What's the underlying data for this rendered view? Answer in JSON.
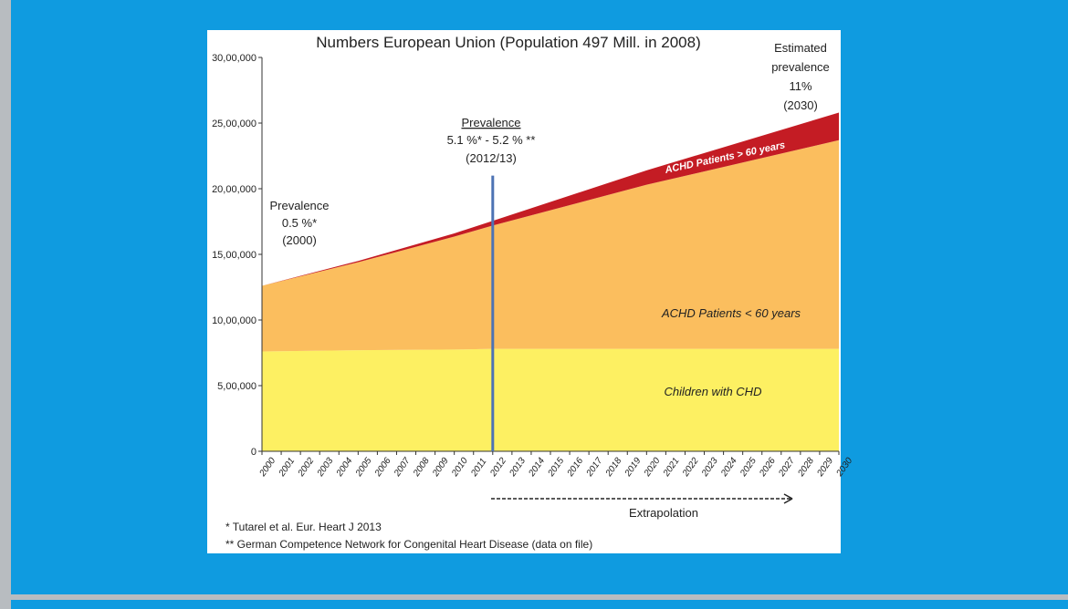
{
  "colors": {
    "background": "#0f9be0",
    "children": "#fdf062",
    "achd_under_60": "#fbbe5e",
    "achd_over_60": "#c41c24",
    "marker_line": "#4d73b4"
  },
  "chart_data": {
    "type": "area",
    "title": "Numbers European Union (Population  497 Mill. in 2008)",
    "xlabel": "",
    "ylabel": "",
    "ylim": [
      0,
      3000000
    ],
    "xlim": [
      2000,
      2030
    ],
    "y_ticks": [
      0,
      500000,
      1000000,
      1500000,
      2000000,
      2500000,
      3000000
    ],
    "y_tick_labels": [
      "0",
      "5,00,000",
      "10,00,000",
      "15,00,000",
      "20,00,000",
      "25,00,000",
      "30,00,000"
    ],
    "x_tick_labels": [
      "2000",
      "2001",
      "2002",
      "2003",
      "2004",
      "2005",
      "2006",
      "2007",
      "2008",
      "2009",
      "2010",
      "2011",
      "2012",
      "2013",
      "2014",
      "2015",
      "2016",
      "2017",
      "2018",
      "2019",
      "2020",
      "2021",
      "2022",
      "2023",
      "2024",
      "2025",
      "2026",
      "2027",
      "2028",
      "2029",
      "2030"
    ],
    "x": [
      2000,
      2005,
      2010,
      2012,
      2020,
      2030
    ],
    "series": [
      {
        "name": "Children with CHD",
        "values": [
          760000,
          770000,
          775000,
          780000,
          780000,
          780000
        ]
      },
      {
        "name": "ACHD Patients < 60 years",
        "values": [
          500000,
          670000,
          860000,
          940000,
          1250000,
          1590000
        ]
      },
      {
        "name": "ACHD Patients > 60 years",
        "values": [
          0,
          10000,
          25000,
          35000,
          110000,
          210000
        ]
      }
    ],
    "marker": {
      "x": 2012,
      "y_top": 2100000
    },
    "annotations": {
      "prev2000": [
        "Prevalence",
        "0.5 %*",
        "(2000)"
      ],
      "prev2012": [
        "Prevalence",
        "5.1 %* - 5.2  % **",
        "(2012/13)"
      ],
      "prev2030": [
        "Estimated",
        "prevalence",
        "11%",
        "(2030)"
      ],
      "extrapolation": "Extrapolation"
    }
  },
  "footnotes": [
    "* Tutarel et al. Eur. Heart J 2013",
    "** German Competence Network for Congenital Heart Disease (data on file)"
  ]
}
